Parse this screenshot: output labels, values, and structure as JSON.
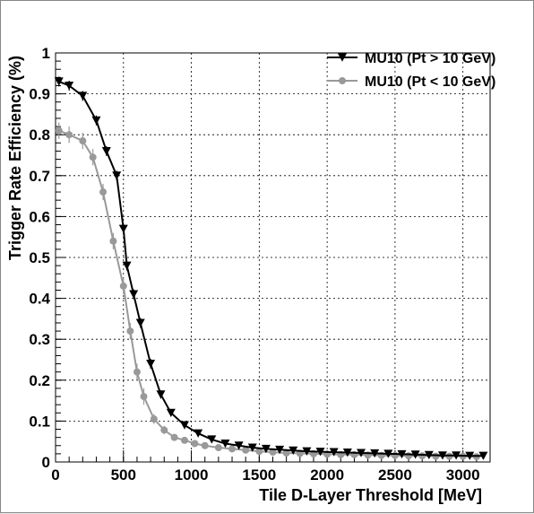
{
  "chart_data": {
    "type": "line",
    "title": "",
    "xlabel": "Tile D-Layer Threshold [MeV]",
    "ylabel": "Trigger Rate Efficiency (%)",
    "xlim": [
      0,
      3200
    ],
    "ylim": [
      0,
      1
    ],
    "x_ticks": [
      0,
      500,
      1000,
      1500,
      2000,
      2500,
      3000
    ],
    "x_tick_labels": [
      "0",
      "500",
      "1000",
      "1500",
      "2000",
      "2500",
      "3000"
    ],
    "y_ticks": [
      0,
      0.1,
      0.2,
      0.3,
      0.4,
      0.5,
      0.6,
      0.7,
      0.8,
      0.9,
      1
    ],
    "y_tick_labels": [
      "0",
      "0.1",
      "0.2",
      "0.3",
      "0.4",
      "0.5",
      "0.6",
      "0.7",
      "0.8",
      "0.9",
      "1"
    ],
    "grid": true,
    "legend_position": "top-right",
    "series": [
      {
        "name": "MU10 (Pt > 10 GeV)",
        "color": "#000000",
        "marker": "triangle-down",
        "x": [
          25,
          100,
          200,
          300,
          375,
          450,
          500,
          525,
          575,
          625,
          700,
          775,
          850,
          950,
          1050,
          1150,
          1250,
          1350,
          1450,
          1550,
          1650,
          1750,
          1850,
          1950,
          2050,
          2150,
          2250,
          2350,
          2450,
          2550,
          2650,
          2750,
          2850,
          2950,
          3050,
          3150
        ],
        "y": [
          0.93,
          0.92,
          0.895,
          0.835,
          0.76,
          0.7,
          0.57,
          0.48,
          0.41,
          0.34,
          0.24,
          0.165,
          0.12,
          0.09,
          0.07,
          0.055,
          0.045,
          0.04,
          0.035,
          0.032,
          0.03,
          0.028,
          0.026,
          0.025,
          0.024,
          0.023,
          0.022,
          0.021,
          0.02,
          0.019,
          0.018,
          0.017,
          0.016,
          0.016,
          0.015,
          0.015
        ],
        "err": [
          0.012,
          0.012,
          0.012,
          0.012,
          0.012,
          0.012,
          0.012,
          0.012,
          0.012,
          0.012,
          0.012,
          0.01,
          0.008,
          0.006,
          0.006,
          0.005,
          0.005,
          0.004,
          0.004,
          0.004,
          0.004,
          0.003,
          0.003,
          0.003,
          0.003,
          0.003,
          0.003,
          0.003,
          0.003,
          0.003,
          0.003,
          0.003,
          0.003,
          0.003,
          0.003,
          0.003
        ]
      },
      {
        "name": "MU10 (Pt < 10 GeV)",
        "color": "#999999",
        "marker": "circle",
        "x": [
          25,
          100,
          200,
          275,
          350,
          425,
          500,
          550,
          600,
          650,
          725,
          800,
          875,
          950,
          1025,
          1100,
          1200,
          1300,
          1400,
          1500,
          1600,
          1700,
          1800,
          1900,
          2000,
          2100,
          2200,
          2300,
          2400,
          2500,
          2600,
          2700,
          2800,
          2900,
          3000,
          3100
        ],
        "y": [
          0.81,
          0.8,
          0.785,
          0.745,
          0.66,
          0.54,
          0.43,
          0.32,
          0.22,
          0.16,
          0.105,
          0.078,
          0.06,
          0.053,
          0.045,
          0.04,
          0.035,
          0.032,
          0.029,
          0.026,
          0.024,
          0.022,
          0.021,
          0.02,
          0.019,
          0.018,
          0.018,
          0.017,
          0.016,
          0.016,
          0.015,
          0.015,
          0.014,
          0.014,
          0.014,
          0.013
        ],
        "err": [
          0.02,
          0.02,
          0.02,
          0.02,
          0.02,
          0.02,
          0.02,
          0.02,
          0.02,
          0.02,
          0.012,
          0.01,
          0.008,
          0.008,
          0.006,
          0.006,
          0.005,
          0.005,
          0.005,
          0.005,
          0.004,
          0.004,
          0.004,
          0.004,
          0.004,
          0.004,
          0.004,
          0.004,
          0.004,
          0.004,
          0.004,
          0.004,
          0.004,
          0.004,
          0.004,
          0.004
        ]
      }
    ]
  }
}
